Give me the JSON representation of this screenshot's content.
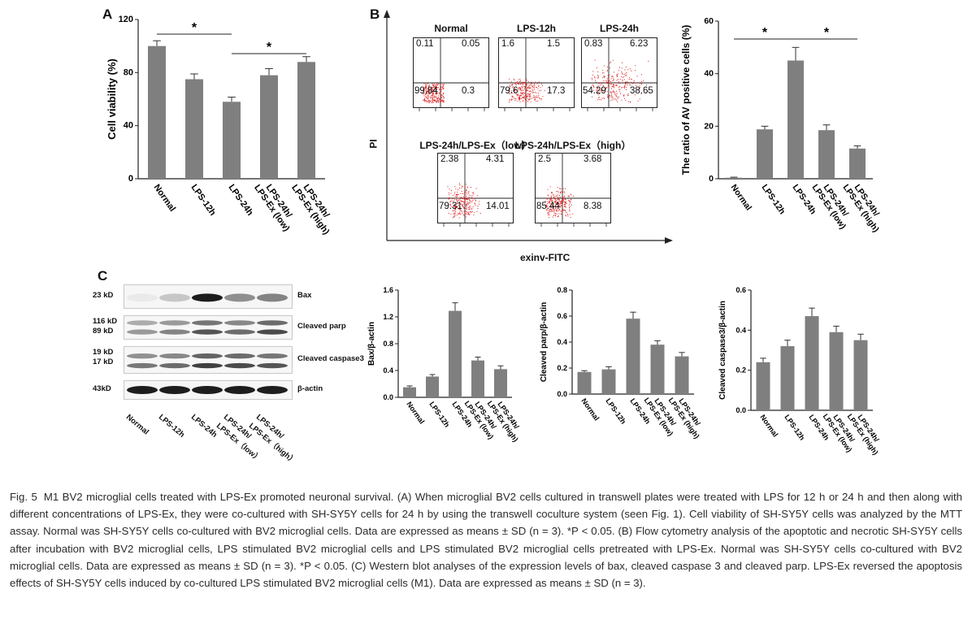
{
  "panels": {
    "A": {
      "letter": "A",
      "significance": "*"
    },
    "B": {
      "letter": "B",
      "flow_titles": [
        "Normal",
        "LPS-12h",
        "LPS-24h",
        "LPS-24h/LPS-Ex（low）",
        "LPS-24h/LPS-Ex（high）"
      ],
      "flow_quadrants": [
        [
          "0.11",
          "0.05",
          "99.84",
          "0.3"
        ],
        [
          "1.6",
          "1.5",
          "79.6",
          "17.3"
        ],
        [
          "0.83",
          "6.23",
          "54.29",
          "38.65"
        ],
        [
          "2.38",
          "4.31",
          "79.31",
          "14.01"
        ],
        [
          "2.5",
          "3.68",
          "85.44",
          "8.38"
        ]
      ],
      "y_label": "PI",
      "x_label": "exinv-FITC",
      "significance": "*"
    },
    "C": {
      "letter": "C",
      "blot_rows": [
        {
          "kd": "23 kD",
          "name": "Bax"
        },
        {
          "kd": "116 kD",
          "kd2": "89 kD",
          "name": "Cleaved parp"
        },
        {
          "kd": "19 kD",
          "kd2": "17 kD",
          "name": "Cleaved caspase3"
        },
        {
          "kd": "43kD",
          "name": "β-actin"
        }
      ],
      "lanes": [
        "Normal",
        "LPS-12h",
        "LPS-24h",
        "LPS-24h/ LPS-Ex（low）",
        "LPS-24h/ LPS-Ex（high）"
      ]
    }
  },
  "chart_data": [
    {
      "type": "bar",
      "panel": "A",
      "categories": [
        "Normal",
        "LPS-12h",
        "LPS-24h",
        "LPS-24h/ LPS-Ex (low)",
        "LPS-24h/ LPS-Ex (high)"
      ],
      "values": [
        100,
        75,
        58,
        78,
        88
      ],
      "errors": [
        4,
        4,
        3.5,
        5,
        4
      ],
      "ylabel": "Cell viability (%)",
      "ylim": [
        0,
        120
      ],
      "yticks": [
        "0",
        "40",
        "80",
        "120"
      ],
      "grid": false
    },
    {
      "type": "bar",
      "panel": "B",
      "categories": [
        "Normal",
        "LPS-12h",
        "LPS-24h",
        "LPS-24h/ LPS-Ex (low)",
        "LPS-24h/ LPS-Ex (high)"
      ],
      "values": [
        0.4,
        18.8,
        45,
        18.5,
        11.5
      ],
      "errors": [
        0.2,
        1.2,
        5,
        2,
        1
      ],
      "ylabel": "The ratio of AV positive cells (%)",
      "ylim": [
        0,
        60
      ],
      "yticks": [
        "0",
        "20",
        "40",
        "60"
      ],
      "grid": false
    },
    {
      "type": "bar",
      "panel": "C-Bax",
      "categories": [
        "Normal",
        "LPS-12h",
        "LPS-24h",
        "LPS-24h/ LPS-Ex (low)",
        "LPS-24h/ LPS-Ex (high)"
      ],
      "values": [
        0.15,
        0.31,
        1.29,
        0.55,
        0.42
      ],
      "errors": [
        0.02,
        0.03,
        0.12,
        0.05,
        0.05
      ],
      "ylabel": "Bax/β-actin",
      "ylim": [
        0,
        1.6
      ],
      "yticks": [
        "0.0",
        "0.4",
        "0.8",
        "1.2",
        "1.6"
      ],
      "grid": false
    },
    {
      "type": "bar",
      "panel": "C-parp",
      "categories": [
        "Normal",
        "LPS-12h",
        "LPS-24h",
        "LPS-24h/ LPS-Ex (low)",
        "LPS-24h/ LPS-Ex (high)"
      ],
      "values": [
        0.17,
        0.19,
        0.58,
        0.38,
        0.29
      ],
      "errors": [
        0.01,
        0.02,
        0.05,
        0.03,
        0.03
      ],
      "ylabel": "Cleaved parp/β-actin",
      "ylim": [
        0,
        0.8
      ],
      "yticks": [
        "0.0",
        "0.2",
        "0.4",
        "0.6",
        "0.8"
      ],
      "grid": false
    },
    {
      "type": "bar",
      "panel": "C-caspase3",
      "categories": [
        "Normal",
        "LPS-12h",
        "LPS-24h",
        "LPS-24h/ LPS-Ex (low)",
        "LPS-24h/ LPS-Ex (high)"
      ],
      "values": [
        0.24,
        0.32,
        0.47,
        0.39,
        0.35
      ],
      "errors": [
        0.02,
        0.03,
        0.04,
        0.03,
        0.03
      ],
      "ylabel": "Cleaved caspase3/β-actin",
      "ylim": [
        0,
        0.6
      ],
      "yticks": [
        "0.0",
        "0.2",
        "0.4",
        "0.6"
      ],
      "grid": false
    }
  ],
  "caption": {
    "fig_no": "Fig. 5",
    "text": "M1 BV2 microglial cells treated with LPS-Ex promoted neuronal survival. (A) When microglial BV2 cells cultured in transwell plates were treated with LPS for 12 h or 24 h and then along with different concentrations of LPS-Ex, they were co-cultured with SH-SY5Y cells for 24 h by using the transwell coculture system (seen Fig. 1). Cell viability of SH-SY5Y cells was analyzed by the MTT assay. Normal was SH-SY5Y cells co-cultured with BV2 microglial cells. Data are expressed as means ± SD (n = 3). *P < 0.05. (B) Flow cytometry analysis of the apoptotic and necrotic SH-SY5Y cells after incubation with BV2 microglial cells, LPS stimulated BV2 microglial cells and LPS stimulated BV2 microglial cells pretreated with LPS-Ex. Normal was SH-SY5Y cells co-cultured with BV2 microglial cells. Data are expressed as means ± SD (n = 3). *P < 0.05. (C) Western blot analyses of the expression levels of bax, cleaved caspase 3 and cleaved parp. LPS-Ex reversed the apoptosis effects of SH-SY5Y cells induced by co-cultured LPS stimulated BV2 microglial cells (M1). Data are expressed as means ± SD (n = 3)."
  },
  "colors": {
    "bar": "#7f7f7f",
    "scatter": "#e01818",
    "caption": "#2b2b2b"
  }
}
